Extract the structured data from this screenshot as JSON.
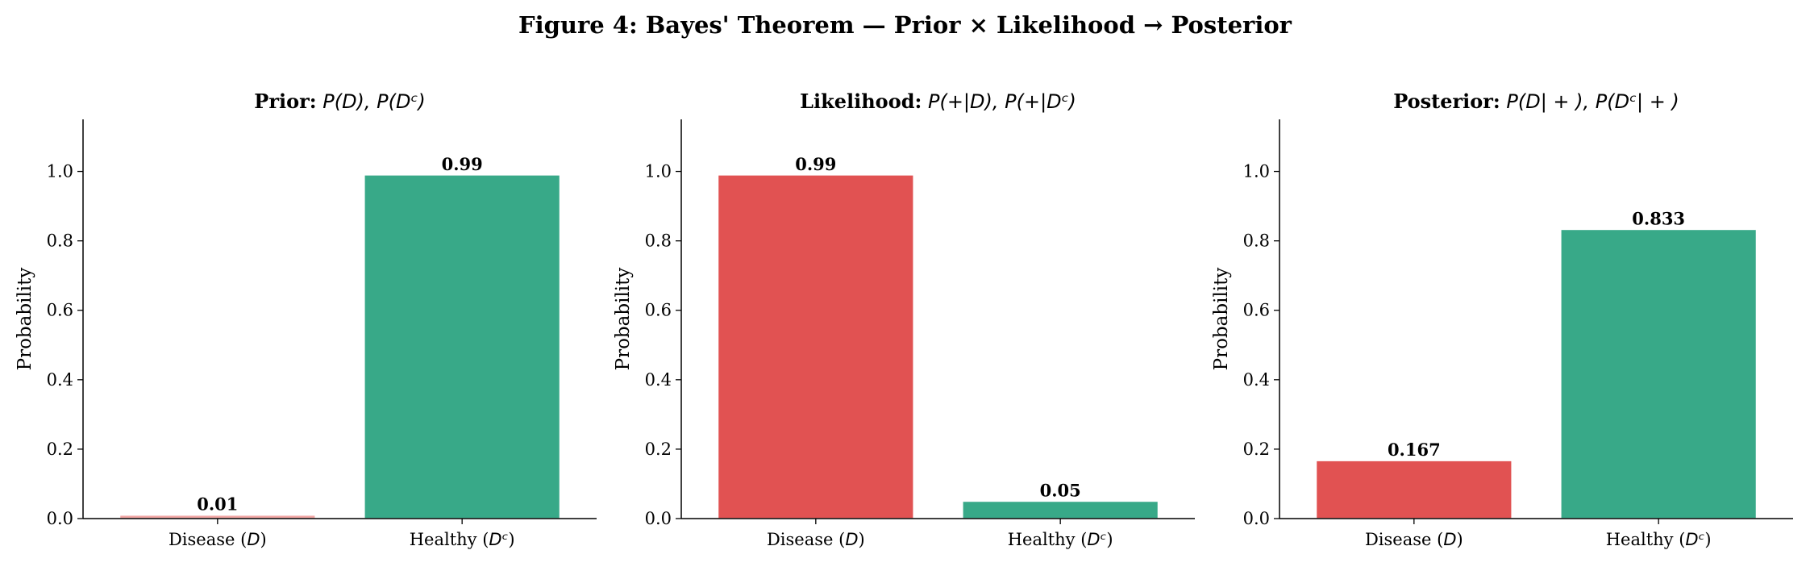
{
  "figure_title": "Figure 4: Bayes' Theorem — Prior × Likelihood → Posterior",
  "colors": {
    "disease": "#e15252",
    "healthy": "#38a988",
    "disease_light": "#f2a7a5",
    "edge": "#ffffff",
    "axis": "#000000"
  },
  "chart_data": [
    {
      "type": "bar",
      "title_bold": "Prior:",
      "title_math": "P(D), P(Dᶜ)",
      "ylabel": "Probability",
      "ylim": [
        0,
        1.15
      ],
      "yticks": [
        "0.0",
        "0.2",
        "0.4",
        "0.6",
        "0.8",
        "1.0"
      ],
      "categories": [
        "Disease (D)",
        "Healthy (Dᶜ)"
      ],
      "category_parts": [
        [
          "Disease (",
          "D",
          ")"
        ],
        [
          "Healthy (",
          "Dᶜ",
          ")"
        ]
      ],
      "values": [
        0.01,
        0.99
      ],
      "value_labels": [
        "0.01",
        "0.99"
      ],
      "bar_colors": [
        "#f2a7a5",
        "#38a988"
      ]
    },
    {
      "type": "bar",
      "title_bold": "Likelihood:",
      "title_math": "P(+|D), P(+|Dᶜ)",
      "ylabel": "Probability",
      "ylim": [
        0,
        1.15
      ],
      "yticks": [
        "0.0",
        "0.2",
        "0.4",
        "0.6",
        "0.8",
        "1.0"
      ],
      "categories": [
        "Disease (D)",
        "Healthy (Dᶜ)"
      ],
      "category_parts": [
        [
          "Disease (",
          "D",
          ")"
        ],
        [
          "Healthy (",
          "Dᶜ",
          ")"
        ]
      ],
      "values": [
        0.99,
        0.05
      ],
      "value_labels": [
        "0.99",
        "0.05"
      ],
      "bar_colors": [
        "#e15252",
        "#38a988"
      ]
    },
    {
      "type": "bar",
      "title_bold": "Posterior:",
      "title_math": "P(D| + ), P(Dᶜ| + )",
      "ylabel": "Probability",
      "ylim": [
        0,
        1.15
      ],
      "yticks": [
        "0.0",
        "0.2",
        "0.4",
        "0.6",
        "0.8",
        "1.0"
      ],
      "categories": [
        "Disease (D)",
        "Healthy (Dᶜ)"
      ],
      "category_parts": [
        [
          "Disease (",
          "D",
          ")"
        ],
        [
          "Healthy (",
          "Dᶜ",
          ")"
        ]
      ],
      "values": [
        0.167,
        0.833
      ],
      "value_labels": [
        "0.167",
        "0.833"
      ],
      "bar_colors": [
        "#e15252",
        "#38a988"
      ]
    }
  ]
}
